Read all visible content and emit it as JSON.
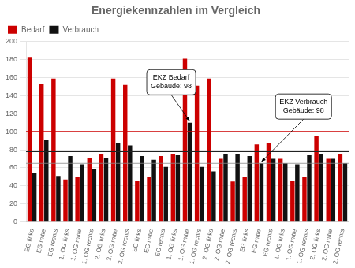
{
  "chart_data": {
    "type": "bar",
    "title": "Energiekennzahlen im Vergleich",
    "categories": [
      "EG links",
      "EG mitte",
      "EG rechts",
      "1. OG links",
      "1. OG mitte",
      "1. OG rechts",
      "2. OG links",
      "2. OG mitte",
      "2. OG rechts",
      "EG links",
      "EG mitte",
      "EG rechts",
      "1. OG links",
      "1. OG mitte",
      "1. OG rechts",
      "2. OG links",
      "2. OG mitte",
      "2. OG rechts",
      "EG links",
      "EG mitte",
      "EG rechts",
      "1. OG links",
      "1. OG mitte",
      "1. OG rechts",
      "2. OG links",
      "2. OG mitte",
      "2. OG rechts"
    ],
    "series": [
      {
        "name": "Bedarf",
        "color": "#cc0000",
        "values": [
          183,
          153,
          159,
          47,
          50,
          71,
          75,
          159,
          152,
          46,
          50,
          73,
          75,
          181,
          151,
          159,
          70,
          45,
          50,
          86,
          87,
          70,
          46,
          50,
          95,
          70,
          75
        ]
      },
      {
        "name": "Verbrauch",
        "color": "#111111",
        "values": [
          54,
          91,
          51,
          73,
          64,
          59,
          71,
          87,
          85,
          73,
          69,
          61,
          74,
          110,
          61,
          56,
          75,
          75,
          73,
          65,
          70,
          65,
          64,
          74,
          75,
          70,
          65
        ]
      }
    ],
    "ylim": [
      0,
      200
    ],
    "yticks": [
      0,
      20,
      40,
      60,
      80,
      100,
      120,
      140,
      160,
      180,
      200
    ],
    "grid": true,
    "legend": "upper left",
    "hlines": [
      {
        "value": 100,
        "color": "#cc0000"
      },
      {
        "value": 78,
        "color": "#222222"
      },
      {
        "value": 65,
        "color": "#888888"
      }
    ],
    "annotations": [
      "EKZ Bedarf\nGebäude: 98",
      "EKZ Verbrauch\nGebäude: 98"
    ]
  }
}
